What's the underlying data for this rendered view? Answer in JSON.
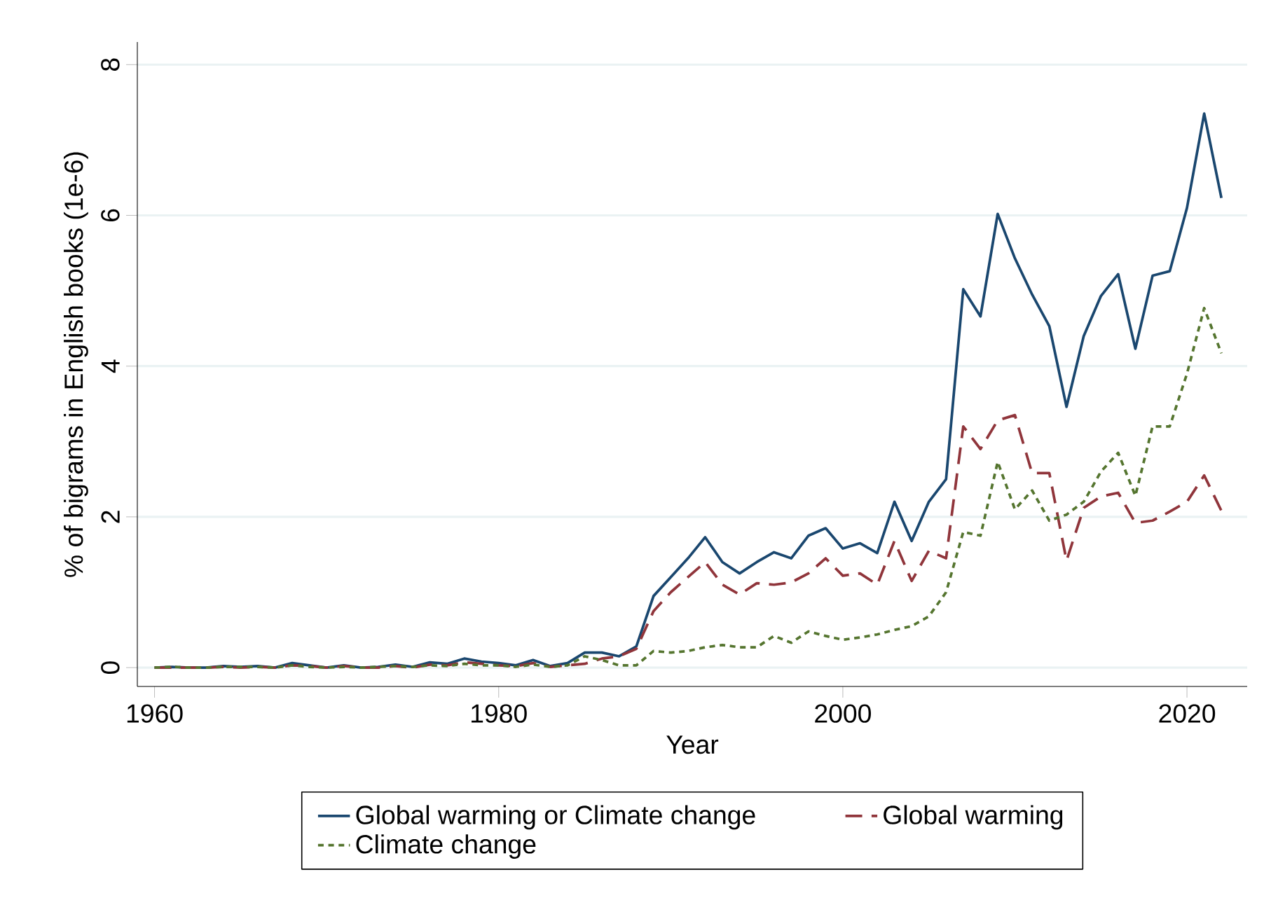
{
  "chart_data": {
    "type": "line",
    "xlabel": "Year",
    "ylabel": "% of bigrams in English books (1e-6)",
    "x": [
      1960,
      1961,
      1962,
      1963,
      1964,
      1965,
      1966,
      1967,
      1968,
      1969,
      1970,
      1971,
      1972,
      1973,
      1974,
      1975,
      1976,
      1977,
      1978,
      1979,
      1980,
      1981,
      1982,
      1983,
      1984,
      1985,
      1986,
      1987,
      1988,
      1989,
      1990,
      1991,
      1992,
      1993,
      1994,
      1995,
      1996,
      1997,
      1998,
      1999,
      2000,
      2001,
      2002,
      2003,
      2004,
      2005,
      2006,
      2007,
      2008,
      2009,
      2010,
      2011,
      2012,
      2013,
      2014,
      2015,
      2016,
      2017,
      2018,
      2019,
      2020,
      2021,
      2022
    ],
    "series": [
      {
        "name": "Global warming or Climate change",
        "color": "#1a476f",
        "line_style": "solid",
        "values": [
          0,
          0.01,
          0,
          0,
          0.02,
          0.01,
          0.02,
          0,
          0.06,
          0.03,
          0,
          0.03,
          0,
          0.01,
          0.04,
          0.01,
          0.07,
          0.05,
          0.12,
          0.08,
          0.06,
          0.03,
          0.1,
          0.02,
          0.06,
          0.2,
          0.2,
          0.15,
          0.28,
          0.95,
          1.2,
          1.45,
          1.73,
          1.4,
          1.25,
          1.4,
          1.53,
          1.45,
          1.75,
          1.85,
          1.58,
          1.65,
          1.52,
          2.2,
          1.68,
          2.2,
          2.5,
          5.02,
          4.66,
          6.02,
          5.43,
          4.95,
          4.53,
          3.46,
          4.4,
          4.93,
          5.22,
          4.23,
          5.2,
          5.26,
          6.1,
          7.35,
          6.23
        ]
      },
      {
        "name": "Global warming",
        "color": "#90353b",
        "line_style": "dashed",
        "values": [
          0,
          0,
          0,
          0,
          0.01,
          0,
          0.01,
          0,
          0.03,
          0.02,
          0,
          0.02,
          0,
          0,
          0.02,
          0,
          0.04,
          0.03,
          0.07,
          0.05,
          0.03,
          0.02,
          0.06,
          0.01,
          0.03,
          0.05,
          0.12,
          0.15,
          0.25,
          0.75,
          1.0,
          1.2,
          1.4,
          1.1,
          0.97,
          1.12,
          1.1,
          1.13,
          1.25,
          1.45,
          1.22,
          1.25,
          1.1,
          1.68,
          1.15,
          1.55,
          1.45,
          3.2,
          2.9,
          3.28,
          3.35,
          2.58,
          2.58,
          1.42,
          2.12,
          2.27,
          2.32,
          1.92,
          1.95,
          2.07,
          2.2,
          2.55,
          2.08
        ]
      },
      {
        "name": "Climate change",
        "color": "#55752f",
        "line_style": "dotted",
        "values": [
          0,
          0.01,
          0,
          0,
          0.01,
          0.01,
          0.01,
          0,
          0.03,
          0.01,
          0,
          0.01,
          0,
          0.01,
          0.02,
          0.01,
          0.03,
          0.02,
          0.05,
          0.03,
          0.03,
          0.01,
          0.04,
          0.01,
          0.03,
          0.15,
          0.1,
          0.03,
          0.03,
          0.22,
          0.2,
          0.22,
          0.27,
          0.3,
          0.27,
          0.27,
          0.42,
          0.33,
          0.48,
          0.42,
          0.37,
          0.4,
          0.44,
          0.5,
          0.55,
          0.68,
          1.0,
          1.8,
          1.75,
          2.73,
          2.1,
          2.35,
          1.95,
          2.03,
          2.2,
          2.6,
          2.85,
          2.28,
          3.2,
          3.2,
          3.9,
          4.77,
          4.17
        ]
      }
    ],
    "xlim": [
      1959,
      2023.5
    ],
    "ylim": [
      -0.25,
      8.3
    ],
    "xticks": [
      1960,
      1980,
      2000,
      2020
    ],
    "yticks": [
      0,
      2,
      4,
      6,
      8
    ],
    "grid": "y",
    "legend": "bottom"
  }
}
